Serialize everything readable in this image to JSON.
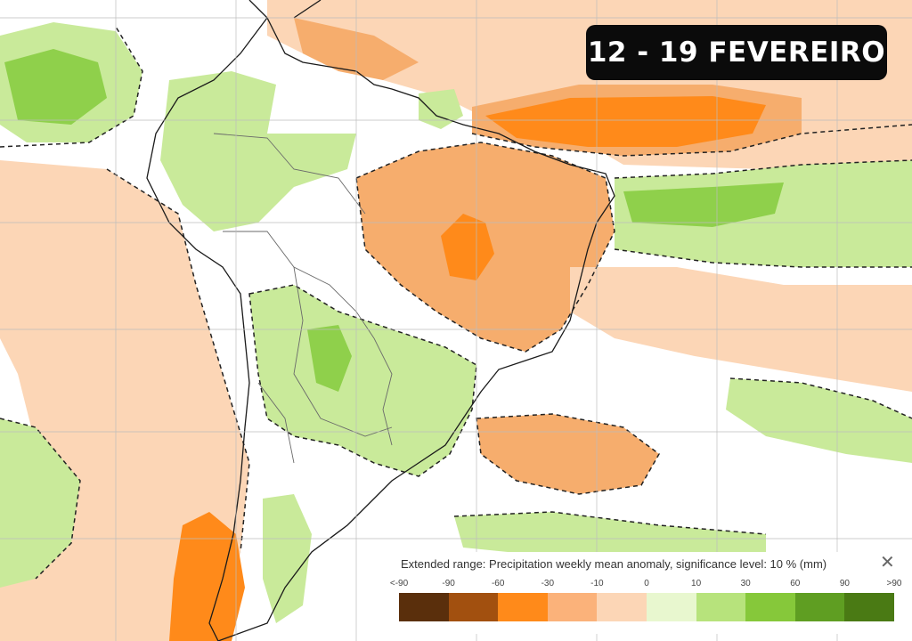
{
  "title": "12 - 19 FEVEREIRO",
  "legend": {
    "title": "Extended range: Precipitation weekly mean anomaly, significance level: 10 % (mm)",
    "close_symbol": "✕",
    "ticks": [
      "<-90",
      "-90",
      "-60",
      "-30",
      "-10",
      "0",
      "10",
      "30",
      "60",
      "90",
      ">90"
    ],
    "colors": [
      "#5a2f0c",
      "#a2500f",
      "#ff8a1a",
      "#fbb27a",
      "#fcd6b6",
      "#e8f7cf",
      "#b7e37c",
      "#86c83a",
      "#5f9e22",
      "#4a7a14"
    ]
  },
  "colors": {
    "dry_light": "#fcd6b6",
    "dry_mid": "#f6ad6d",
    "dry_strong": "#ff8a1a",
    "wet_light": "#c9ea9a",
    "wet_mid": "#8fd04b",
    "wet_strong": "#6fb62c"
  }
}
